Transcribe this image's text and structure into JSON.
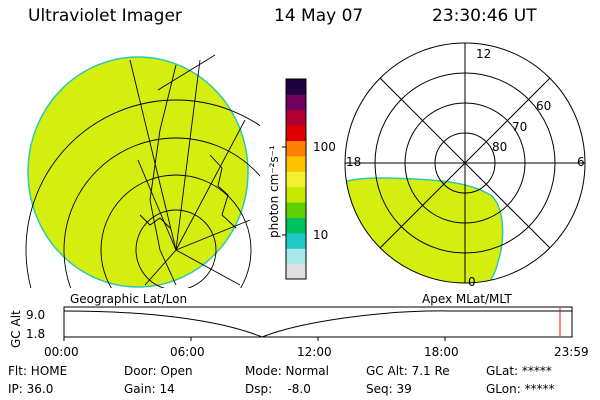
{
  "header": {
    "title": "Ultraviolet Imager",
    "date": "14 May 07",
    "time": "23:30:46 UT"
  },
  "left_panel": {
    "caption": "Geographic Lat/Lon"
  },
  "right_panel": {
    "caption": "Apex MLat/MLT",
    "mlt_labels": {
      "top": "12",
      "left": "18",
      "right": "6",
      "bottom": "0"
    },
    "lat_labels": [
      "60",
      "70",
      "80"
    ]
  },
  "colorbar": {
    "unit_label": "photon cm⁻²s⁻¹",
    "ticks": [
      "100",
      "10"
    ],
    "colors": [
      "#e0e0e0",
      "#a8e8e8",
      "#20c8c8",
      "#00c060",
      "#60d000",
      "#c8e800",
      "#f0f030",
      "#ffc000",
      "#ff8000",
      "#e00000",
      "#b00030",
      "#700060",
      "#200040"
    ]
  },
  "timeline": {
    "ylabel": "GC Alt",
    "y_ticks": [
      "9.0",
      "1.8"
    ],
    "x_ticks": [
      "00:00",
      "06:00",
      "12:00",
      "18:00",
      "23:59"
    ],
    "marker_color": "#ff0000"
  },
  "info": {
    "flt": "Flt: HOME",
    "ip": "IP: 36.0",
    "door": "Door: Open",
    "gain": "Gain: 14",
    "mode": "Mode: Normal",
    "dsp": "Dsp:    -8.0",
    "gc_alt": "GC Alt: 7.1 Re",
    "seq": "Seq: 39",
    "glat": "GLat: *****",
    "glon": "GLon: *****"
  },
  "colors": {
    "aurora": "#d4ee10",
    "edge": "#30c8b0"
  }
}
